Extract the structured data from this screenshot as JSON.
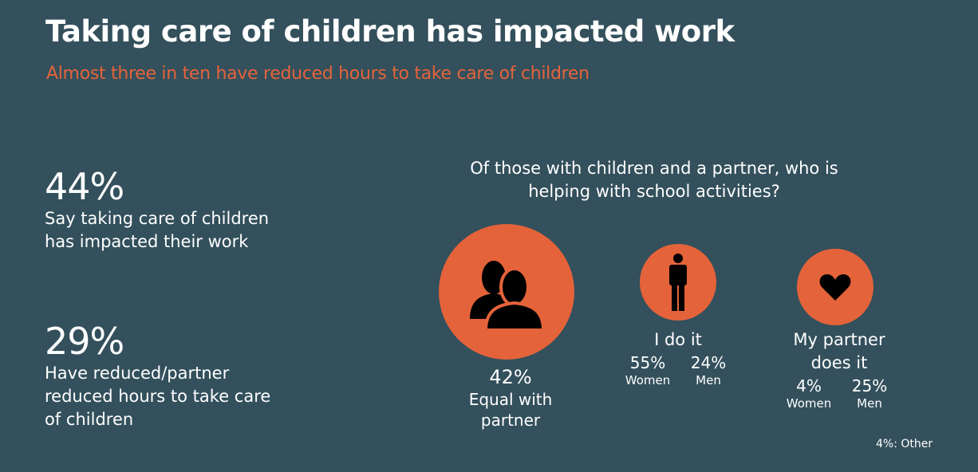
{
  "title": "Taking care of children has impacted work",
  "subtitle": "Almost three in ten have reduced hours to take care of children",
  "stats": [
    {
      "value": "44%",
      "desc": "Say taking care of children has impacted their work"
    },
    {
      "value": "29%",
      "desc": "Have reduced/partner reduced hours to take care of children"
    }
  ],
  "question": "Of those with children and a partner, who is helping with school activities?",
  "options": {
    "equal": {
      "value": "42%",
      "label": "Equal with partner",
      "icon": "two-people-icon"
    },
    "me": {
      "label": "I do it",
      "icon": "person-icon",
      "women_value": "55%",
      "women_label": "Women",
      "men_value": "24%",
      "men_label": "Men"
    },
    "partner": {
      "label": "My partner does it",
      "icon": "heart-icon",
      "women_value": "4%",
      "women_label": "Women",
      "men_value": "25%",
      "men_label": "Men"
    }
  },
  "footnote": "4%:  Other",
  "colors": {
    "background": "#33505c",
    "accent": "#e5633a",
    "text": "#ffffff",
    "icon": "#000000"
  }
}
